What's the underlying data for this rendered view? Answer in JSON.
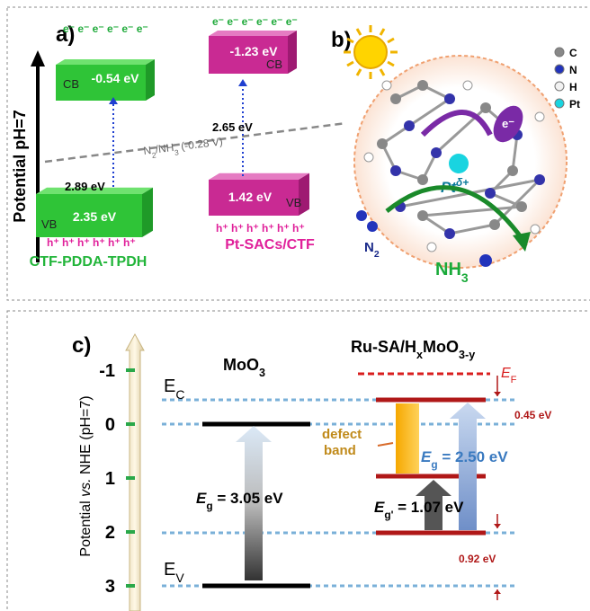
{
  "panel_a": {
    "label": "a)",
    "axis_label": "Potential pH=7",
    "reference_line": [
      "N",
      "2",
      "/NH",
      "3",
      " (-0.28 V)"
    ],
    "materials": [
      {
        "name": "CTF-PDDA-TPDH",
        "cb_label": "CB",
        "cb": "-0.54 eV",
        "vb_label": "VB",
        "vb": "2.35 eV",
        "gap": "2.89 eV",
        "electrons": "e⁻ e⁻ e⁻ e⁻ e⁻ e⁻",
        "holes": "h⁺ h⁺ h⁺ h⁺ h⁺ h⁺"
      },
      {
        "name": "Pt-SACs/CTF",
        "cb_label": "CB",
        "cb": "-1.23 eV",
        "vb_label": "VB",
        "vb": "1.42 eV",
        "gap": "2.65 eV",
        "electrons": "e⁻ e⁻ e⁻ e⁻ e⁻ e⁻",
        "holes": "h⁺ h⁺ h⁺ h⁺ h⁺ h⁺"
      }
    ]
  },
  "panel_b": {
    "label": "b)",
    "legend": [
      "C",
      "N",
      "H",
      "Pt"
    ],
    "pt_label": [
      "Pt",
      "δ+"
    ],
    "n2": [
      "N",
      "2"
    ],
    "nh3": [
      "NH",
      "3"
    ],
    "electron": "e⁻"
  },
  "panel_c": {
    "label": "c)",
    "axis_label": [
      "Potential ",
      "vs.",
      " NHE (pH=7)"
    ],
    "ticks": [
      -1,
      0,
      1,
      2,
      3
    ],
    "left": {
      "title": [
        "MoO",
        "3"
      ],
      "ec": [
        "E",
        "C"
      ],
      "ev": [
        "E",
        "V"
      ],
      "gap": [
        "E",
        "g",
        " = 3.05 eV"
      ]
    },
    "right": {
      "title": [
        "Ru-SA/H",
        "x",
        "MoO",
        "3-y"
      ],
      "ef": [
        "E",
        "F"
      ],
      "offset_top": "0.45 eV",
      "offset_bottom": "0.92 eV",
      "defect": [
        "defect",
        "band"
      ],
      "gap": [
        "E",
        "g",
        " = 2.50 eV"
      ],
      "gap2": [
        "E",
        "g'",
        " = 1.07 eV"
      ]
    }
  }
}
